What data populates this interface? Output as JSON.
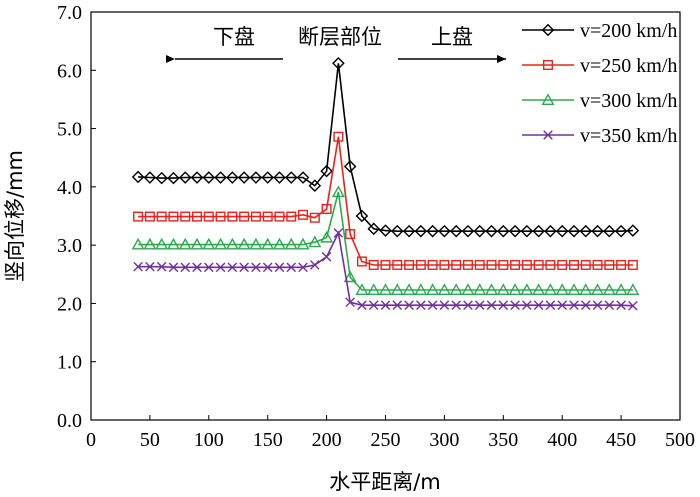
{
  "chart_data": {
    "type": "line",
    "title": "",
    "xlabel": "水平距离/m",
    "ylabel": "竖向位移/mm",
    "xlim": [
      0,
      500
    ],
    "ylim": [
      0.0,
      7.0
    ],
    "xticks": [
      "0",
      "50",
      "100",
      "150",
      "200",
      "250",
      "300",
      "350",
      "400",
      "450",
      "500"
    ],
    "yticks": [
      "0.0",
      "1.0",
      "2.0",
      "3.0",
      "4.0",
      "5.0",
      "6.0",
      "7.0"
    ],
    "grid": false,
    "legend_position": "top-right",
    "annotations": {
      "left": "下盘",
      "center": "断层部位",
      "right": "上盘"
    },
    "x": [
      40,
      50,
      60,
      70,
      80,
      90,
      100,
      110,
      120,
      130,
      140,
      150,
      160,
      170,
      180,
      190,
      200,
      210,
      220,
      230,
      240,
      250,
      260,
      270,
      280,
      290,
      300,
      310,
      320,
      330,
      340,
      350,
      360,
      370,
      380,
      390,
      400,
      410,
      420,
      430,
      440,
      450,
      460
    ],
    "series": [
      {
        "name": "v=200 km/h",
        "color": "#000000",
        "marker": "diamond",
        "values": [
          4.17,
          4.16,
          4.15,
          4.15,
          4.16,
          4.16,
          4.16,
          4.16,
          4.16,
          4.16,
          4.16,
          4.16,
          4.16,
          4.16,
          4.16,
          4.02,
          4.27,
          6.12,
          4.35,
          3.5,
          3.28,
          3.25,
          3.24,
          3.24,
          3.24,
          3.24,
          3.24,
          3.24,
          3.24,
          3.24,
          3.24,
          3.24,
          3.24,
          3.24,
          3.24,
          3.24,
          3.24,
          3.24,
          3.24,
          3.24,
          3.24,
          3.24,
          3.25
        ]
      },
      {
        "name": "v=250 km/h",
        "color": "#e8231d",
        "marker": "square",
        "values": [
          3.49,
          3.49,
          3.49,
          3.49,
          3.49,
          3.49,
          3.49,
          3.49,
          3.49,
          3.49,
          3.49,
          3.49,
          3.49,
          3.49,
          3.52,
          3.47,
          3.62,
          4.86,
          3.19,
          2.72,
          2.66,
          2.66,
          2.66,
          2.66,
          2.66,
          2.66,
          2.66,
          2.66,
          2.66,
          2.66,
          2.66,
          2.66,
          2.66,
          2.66,
          2.66,
          2.66,
          2.66,
          2.66,
          2.66,
          2.66,
          2.66,
          2.66,
          2.66
        ]
      },
      {
        "name": "v=300 km/h",
        "color": "#2fa84f",
        "marker": "triangle",
        "values": [
          3.01,
          3.01,
          3.01,
          3.01,
          3.01,
          3.01,
          3.01,
          3.01,
          3.01,
          3.01,
          3.01,
          3.01,
          3.01,
          3.01,
          3.01,
          3.05,
          3.13,
          3.91,
          2.45,
          2.23,
          2.23,
          2.23,
          2.23,
          2.23,
          2.23,
          2.23,
          2.23,
          2.23,
          2.23,
          2.23,
          2.23,
          2.23,
          2.23,
          2.23,
          2.23,
          2.23,
          2.23,
          2.23,
          2.23,
          2.23,
          2.23,
          2.23,
          2.23
        ]
      },
      {
        "name": "v=350 km/h",
        "color": "#7030a0",
        "marker": "x",
        "values": [
          2.63,
          2.63,
          2.63,
          2.62,
          2.62,
          2.62,
          2.62,
          2.62,
          2.62,
          2.62,
          2.62,
          2.62,
          2.62,
          2.62,
          2.62,
          2.66,
          2.8,
          3.21,
          2.02,
          1.97,
          1.97,
          1.97,
          1.97,
          1.97,
          1.97,
          1.97,
          1.97,
          1.97,
          1.97,
          1.97,
          1.97,
          1.97,
          1.97,
          1.97,
          1.97,
          1.97,
          1.97,
          1.97,
          1.97,
          1.97,
          1.97,
          1.97,
          1.96
        ]
      }
    ]
  }
}
